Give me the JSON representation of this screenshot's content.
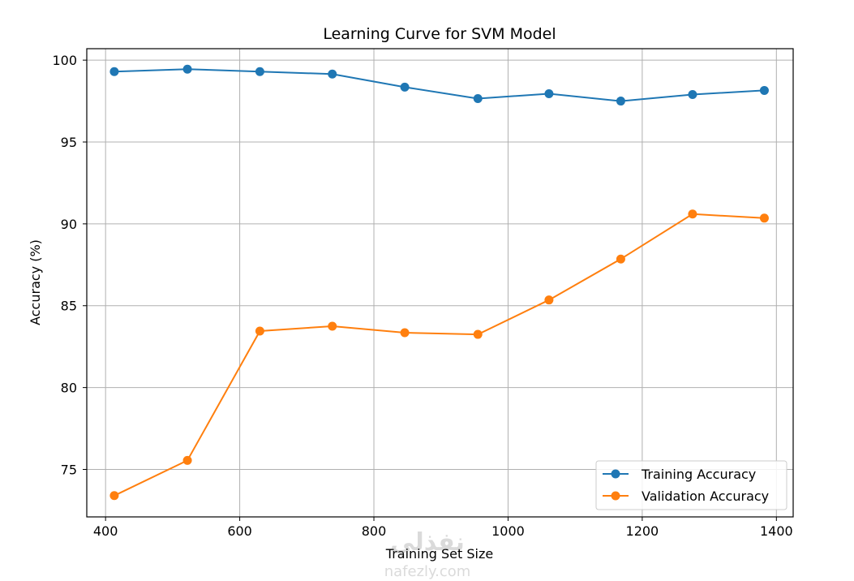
{
  "chart_data": {
    "type": "line",
    "title": "Learning Curve for SVM Model",
    "xlabel": "Training Set Size",
    "ylabel": "Accuracy (%)",
    "x": [
      413,
      522,
      630,
      738,
      846,
      955,
      1061,
      1168,
      1275,
      1382
    ],
    "xlim": [
      372,
      1425
    ],
    "ylim": [
      72.1,
      100.7
    ],
    "xticks": [
      400,
      600,
      800,
      1000,
      1200,
      1400
    ],
    "yticks": [
      75,
      80,
      85,
      90,
      95,
      100
    ],
    "grid": true,
    "legend_position": "lower-right",
    "series": [
      {
        "name": "Training Accuracy",
        "color": "#1f77b4",
        "values": [
          99.3,
          99.45,
          99.3,
          99.15,
          98.35,
          97.65,
          97.95,
          97.5,
          97.9,
          98.15
        ]
      },
      {
        "name": "Validation Accuracy",
        "color": "#ff7f0e",
        "values": [
          73.4,
          75.55,
          83.45,
          83.75,
          83.35,
          83.25,
          85.35,
          87.85,
          90.6,
          90.35
        ]
      }
    ]
  },
  "watermark": {
    "logo_text": "نفذلي",
    "site_text": "nafezly.com"
  }
}
